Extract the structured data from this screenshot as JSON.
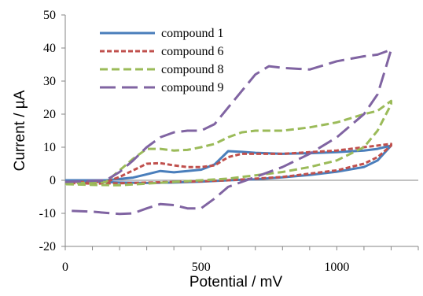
{
  "chart_data": {
    "type": "line",
    "xlabel": "Potential / mV",
    "ylabel": "Current / µA",
    "xlim": [
      0,
      1300
    ],
    "ylim": [
      -20,
      50
    ],
    "xticks": [
      0,
      500,
      1000
    ],
    "yticks": [
      -20,
      -10,
      0,
      10,
      20,
      30,
      40,
      50
    ],
    "grid": false,
    "legend_position": "top-left",
    "series": [
      {
        "name": "compound 1",
        "color": "#4a7ebb",
        "dash": "solid",
        "x": [
          0,
          150,
          250,
          300,
          350,
          400,
          450,
          500,
          550,
          600,
          650,
          700,
          800,
          900,
          1000,
          1100,
          1150,
          1200,
          1200,
          1150,
          1100,
          1000,
          900,
          800,
          700,
          600,
          500,
          400,
          300,
          200,
          100,
          0
        ],
        "y": [
          0,
          0,
          0.8,
          1.8,
          2.8,
          2.4,
          2.8,
          3.2,
          4.8,
          8.8,
          8.6,
          8.3,
          8.0,
          8.2,
          8.5,
          9.0,
          9.5,
          10.5,
          10.5,
          6.0,
          4.0,
          2.6,
          1.6,
          0.9,
          0.3,
          0,
          -0.4,
          -0.7,
          -0.8,
          -0.7,
          -0.4,
          -0.1
        ]
      },
      {
        "name": "compound 6",
        "color": "#c0504d",
        "dash": "short-dash",
        "x": [
          0,
          150,
          200,
          250,
          300,
          350,
          400,
          450,
          500,
          550,
          600,
          650,
          700,
          800,
          900,
          1000,
          1100,
          1150,
          1200,
          1200,
          1150,
          1100,
          1000,
          900,
          800,
          700,
          600,
          500,
          400,
          300,
          200,
          100,
          0
        ],
        "y": [
          -0.5,
          -0.5,
          1.0,
          3.0,
          5.0,
          5.2,
          4.5,
          4.0,
          4.0,
          4.5,
          7.0,
          8.0,
          8.0,
          8.0,
          8.5,
          9.0,
          10.0,
          10.5,
          11.0,
          10.5,
          7.0,
          5.0,
          3.0,
          2.0,
          1.0,
          0.5,
          0,
          -0.3,
          -0.5,
          -0.7,
          -0.9,
          -1.0,
          -0.8
        ]
      },
      {
        "name": "compound 8",
        "color": "#9bbb59",
        "dash": "dash",
        "x": [
          0,
          150,
          200,
          250,
          300,
          350,
          400,
          450,
          500,
          550,
          600,
          650,
          700,
          800,
          900,
          1000,
          1100,
          1150,
          1200,
          1200,
          1150,
          1100,
          1000,
          900,
          800,
          700,
          600,
          500,
          400,
          300,
          200,
          100,
          0
        ],
        "y": [
          -1.0,
          -0.5,
          3.0,
          6.5,
          9.5,
          9.5,
          9.0,
          9.2,
          10.0,
          11.0,
          13.0,
          14.5,
          15.0,
          15.0,
          16.0,
          17.5,
          20.0,
          21.0,
          24.0,
          23.0,
          15.0,
          10.0,
          6.0,
          4.0,
          2.5,
          1.5,
          0.5,
          0,
          -0.5,
          -1.0,
          -1.5,
          -1.4,
          -1.2
        ]
      },
      {
        "name": "compound 9",
        "color": "#8064a2",
        "dash": "long-dash",
        "x": [
          0,
          150,
          200,
          250,
          300,
          350,
          400,
          450,
          500,
          550,
          600,
          650,
          700,
          750,
          800,
          900,
          1000,
          1100,
          1150,
          1200,
          1200,
          1180,
          1150,
          1100,
          1000,
          900,
          800,
          700,
          600,
          550,
          500,
          450,
          400,
          350,
          300,
          250,
          200,
          100,
          0
        ],
        "y": [
          -0.5,
          0,
          2.5,
          6.0,
          10.0,
          13.0,
          14.5,
          15.0,
          15.0,
          17.0,
          22.0,
          27.0,
          32.0,
          34.5,
          34.0,
          33.5,
          36.0,
          37.5,
          38.0,
          39.5,
          39.5,
          34.0,
          26.0,
          20.0,
          13.0,
          8.0,
          4.0,
          1.0,
          -2.0,
          -5.5,
          -8.5,
          -8.5,
          -7.5,
          -7.2,
          -8.5,
          -10.0,
          -10.2,
          -9.5,
          -9.2
        ]
      }
    ]
  }
}
